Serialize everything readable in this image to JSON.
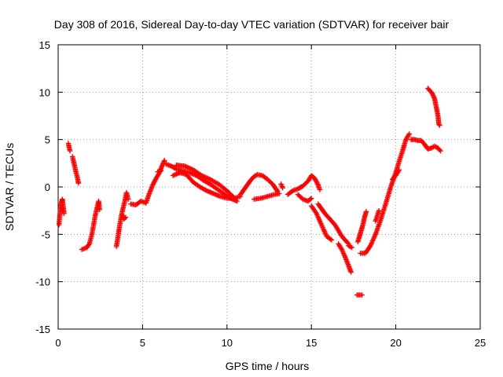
{
  "chart_data": {
    "type": "scatter",
    "title": "Day 308 of 2016, Sidereal Day-to-day VTEC variation (SDTVAR) for receiver bair",
    "xlabel": "GPS time / hours",
    "ylabel": "SDTVAR / TECUs",
    "xlim": [
      0,
      25
    ],
    "ylim": [
      -15,
      15
    ],
    "xticks": [
      0,
      5,
      10,
      15,
      20,
      25
    ],
    "yticks": [
      -15,
      -10,
      -5,
      0,
      5,
      10,
      15
    ],
    "xtick_labels": [
      "0",
      "5",
      "10",
      "15",
      "20",
      "25"
    ],
    "ytick_labels": [
      "-15",
      "-10",
      "-5",
      "0",
      "5",
      "10",
      "15"
    ],
    "grid": true,
    "marker": "+",
    "color": "#ff0000",
    "segments": [
      [
        [
          0.05,
          -4.0
        ],
        [
          0.1,
          -3.0
        ],
        [
          0.15,
          -2.2
        ],
        [
          0.2,
          -1.6
        ],
        [
          0.25,
          -1.3
        ],
        [
          0.3,
          -2.0
        ],
        [
          0.35,
          -2.8
        ]
      ],
      [
        [
          0.6,
          4.6
        ],
        [
          0.65,
          4.2
        ],
        [
          0.7,
          3.8
        ]
      ],
      [
        [
          0.85,
          3.2
        ],
        [
          0.95,
          2.4
        ],
        [
          1.05,
          1.6
        ],
        [
          1.15,
          0.9
        ],
        [
          1.2,
          0.4
        ]
      ],
      [
        [
          1.4,
          -6.6
        ],
        [
          1.55,
          -6.5
        ],
        [
          1.7,
          -6.4
        ],
        [
          1.85,
          -6.0
        ],
        [
          2.0,
          -5.0
        ],
        [
          2.1,
          -4.0
        ],
        [
          2.2,
          -3.0
        ],
        [
          2.3,
          -2.2
        ],
        [
          2.4,
          -1.5
        ],
        [
          2.45,
          -2.4
        ]
      ],
      [
        [
          3.45,
          -6.3
        ],
        [
          3.55,
          -5.2
        ],
        [
          3.65,
          -4.0
        ],
        [
          3.75,
          -3.0
        ],
        [
          3.85,
          -2.2
        ],
        [
          3.95,
          -1.5
        ],
        [
          4.05,
          -0.6
        ],
        [
          4.15,
          -1.3
        ]
      ],
      [
        [
          3.8,
          -3.0
        ],
        [
          3.9,
          -3.4
        ],
        [
          4.0,
          -3.2
        ]
      ],
      [
        [
          4.3,
          -1.8
        ],
        [
          4.6,
          -1.9
        ],
        [
          4.9,
          -1.5
        ],
        [
          5.2,
          -1.7
        ],
        [
          5.4,
          -0.7
        ],
        [
          5.6,
          0.2
        ],
        [
          5.8,
          0.9
        ],
        [
          6.0,
          1.5
        ],
        [
          6.15,
          2.2
        ],
        [
          6.3,
          2.8
        ]
      ],
      [
        [
          5.9,
          1.6
        ],
        [
          6.1,
          1.7
        ]
      ],
      [
        [
          6.4,
          2.4
        ],
        [
          6.7,
          2.2
        ],
        [
          7.0,
          1.9
        ],
        [
          7.4,
          1.7
        ],
        [
          7.8,
          1.5
        ],
        [
          8.2,
          1.2
        ],
        [
          8.6,
          0.7
        ],
        [
          9.0,
          0.3
        ],
        [
          9.4,
          -0.2
        ],
        [
          9.8,
          -0.7
        ],
        [
          10.2,
          -1.2
        ],
        [
          10.6,
          -1.5
        ]
      ],
      [
        [
          6.8,
          1.2
        ],
        [
          7.2,
          1.5
        ],
        [
          7.6,
          1.3
        ],
        [
          8.0,
          0.5
        ],
        [
          8.4,
          0.0
        ],
        [
          8.8,
          -0.4
        ],
        [
          9.2,
          -0.7
        ],
        [
          9.6,
          -1.0
        ],
        [
          10.0,
          -1.2
        ],
        [
          10.4,
          -1.2
        ],
        [
          10.8,
          -1.0
        ]
      ],
      [
        [
          7.0,
          2.3
        ],
        [
          7.5,
          2.2
        ],
        [
          8.0,
          1.8
        ],
        [
          8.5,
          1.2
        ],
        [
          9.0,
          0.8
        ],
        [
          9.5,
          0.3
        ],
        [
          10.0,
          -0.4
        ],
        [
          10.4,
          -1.1
        ]
      ],
      [
        [
          10.8,
          -0.8
        ],
        [
          11.0,
          -0.3
        ],
        [
          11.2,
          0.2
        ],
        [
          11.4,
          0.7
        ],
        [
          11.6,
          1.1
        ],
        [
          11.8,
          1.3
        ],
        [
          12.1,
          1.2
        ],
        [
          12.4,
          0.8
        ],
        [
          12.7,
          0.3
        ],
        [
          12.9,
          -0.2
        ],
        [
          13.0,
          -0.5
        ]
      ],
      [
        [
          11.6,
          -1.3
        ],
        [
          12.0,
          -1.2
        ],
        [
          12.4,
          -1.0
        ],
        [
          12.8,
          -0.8
        ],
        [
          13.1,
          -0.7
        ]
      ],
      [
        [
          13.2,
          0.3
        ],
        [
          13.3,
          -0.1
        ]
      ],
      [
        [
          13.6,
          -0.8
        ],
        [
          13.9,
          -0.4
        ],
        [
          14.2,
          -0.2
        ],
        [
          14.5,
          0.1
        ],
        [
          14.8,
          0.6
        ],
        [
          15.0,
          1.2
        ],
        [
          15.2,
          0.9
        ],
        [
          15.4,
          0.2
        ],
        [
          15.5,
          -0.3
        ]
      ],
      [
        [
          14.2,
          -0.8
        ],
        [
          14.5,
          -1.3
        ],
        [
          14.8,
          -1.5
        ],
        [
          15.0,
          -1.2
        ]
      ],
      [
        [
          15.0,
          -2.0
        ],
        [
          15.3,
          -2.8
        ],
        [
          15.6,
          -4.0
        ],
        [
          15.9,
          -5.2
        ],
        [
          16.2,
          -5.6
        ]
      ],
      [
        [
          15.4,
          -1.8
        ],
        [
          15.6,
          -2.3
        ],
        [
          15.8,
          -2.8
        ],
        [
          16.0,
          -3.2
        ],
        [
          16.2,
          -3.6
        ],
        [
          16.4,
          -4.0
        ],
        [
          16.6,
          -4.6
        ],
        [
          16.8,
          -5.2
        ],
        [
          17.0,
          -5.6
        ],
        [
          17.2,
          -6.0
        ]
      ],
      [
        [
          16.6,
          -6.0
        ],
        [
          16.8,
          -6.6
        ],
        [
          17.0,
          -7.4
        ],
        [
          17.2,
          -8.3
        ],
        [
          17.35,
          -9.0
        ]
      ],
      [
        [
          17.2,
          -6.2
        ],
        [
          17.4,
          -6.4
        ]
      ],
      [
        [
          17.75,
          -5.8
        ],
        [
          17.85,
          -5.2
        ],
        [
          17.95,
          -4.6
        ],
        [
          18.05,
          -4.0
        ],
        [
          18.15,
          -3.2
        ],
        [
          18.25,
          -2.6
        ]
      ],
      [
        [
          17.7,
          -11.4
        ],
        [
          17.85,
          -11.4
        ],
        [
          18.0,
          -11.4
        ]
      ],
      [
        [
          17.9,
          -7.0
        ],
        [
          18.2,
          -7.0
        ],
        [
          18.5,
          -6.2
        ],
        [
          18.8,
          -5.0
        ],
        [
          19.1,
          -3.5
        ],
        [
          19.4,
          -1.8
        ],
        [
          19.7,
          0.0
        ],
        [
          20.0,
          1.5
        ],
        [
          20.2,
          2.7
        ],
        [
          20.4,
          3.8
        ],
        [
          20.6,
          5.0
        ],
        [
          20.8,
          5.6
        ]
      ],
      [
        [
          18.8,
          -3.6
        ],
        [
          19.0,
          -2.5
        ]
      ],
      [
        [
          19.8,
          0.8
        ],
        [
          20.0,
          1.2
        ],
        [
          20.2,
          1.8
        ]
      ],
      [
        [
          20.9,
          5.0
        ],
        [
          21.1,
          5.0
        ],
        [
          21.3,
          4.9
        ],
        [
          21.5,
          4.9
        ],
        [
          21.7,
          4.5
        ],
        [
          21.9,
          4.0
        ],
        [
          22.1,
          4.1
        ],
        [
          22.3,
          4.3
        ],
        [
          22.5,
          4.1
        ],
        [
          22.65,
          3.8
        ]
      ],
      [
        [
          21.9,
          10.4
        ],
        [
          22.0,
          10.2
        ],
        [
          22.15,
          9.9
        ],
        [
          22.3,
          9.3
        ],
        [
          22.4,
          8.4
        ],
        [
          22.5,
          7.5
        ],
        [
          22.55,
          6.6
        ],
        [
          22.6,
          6.5
        ]
      ]
    ]
  }
}
